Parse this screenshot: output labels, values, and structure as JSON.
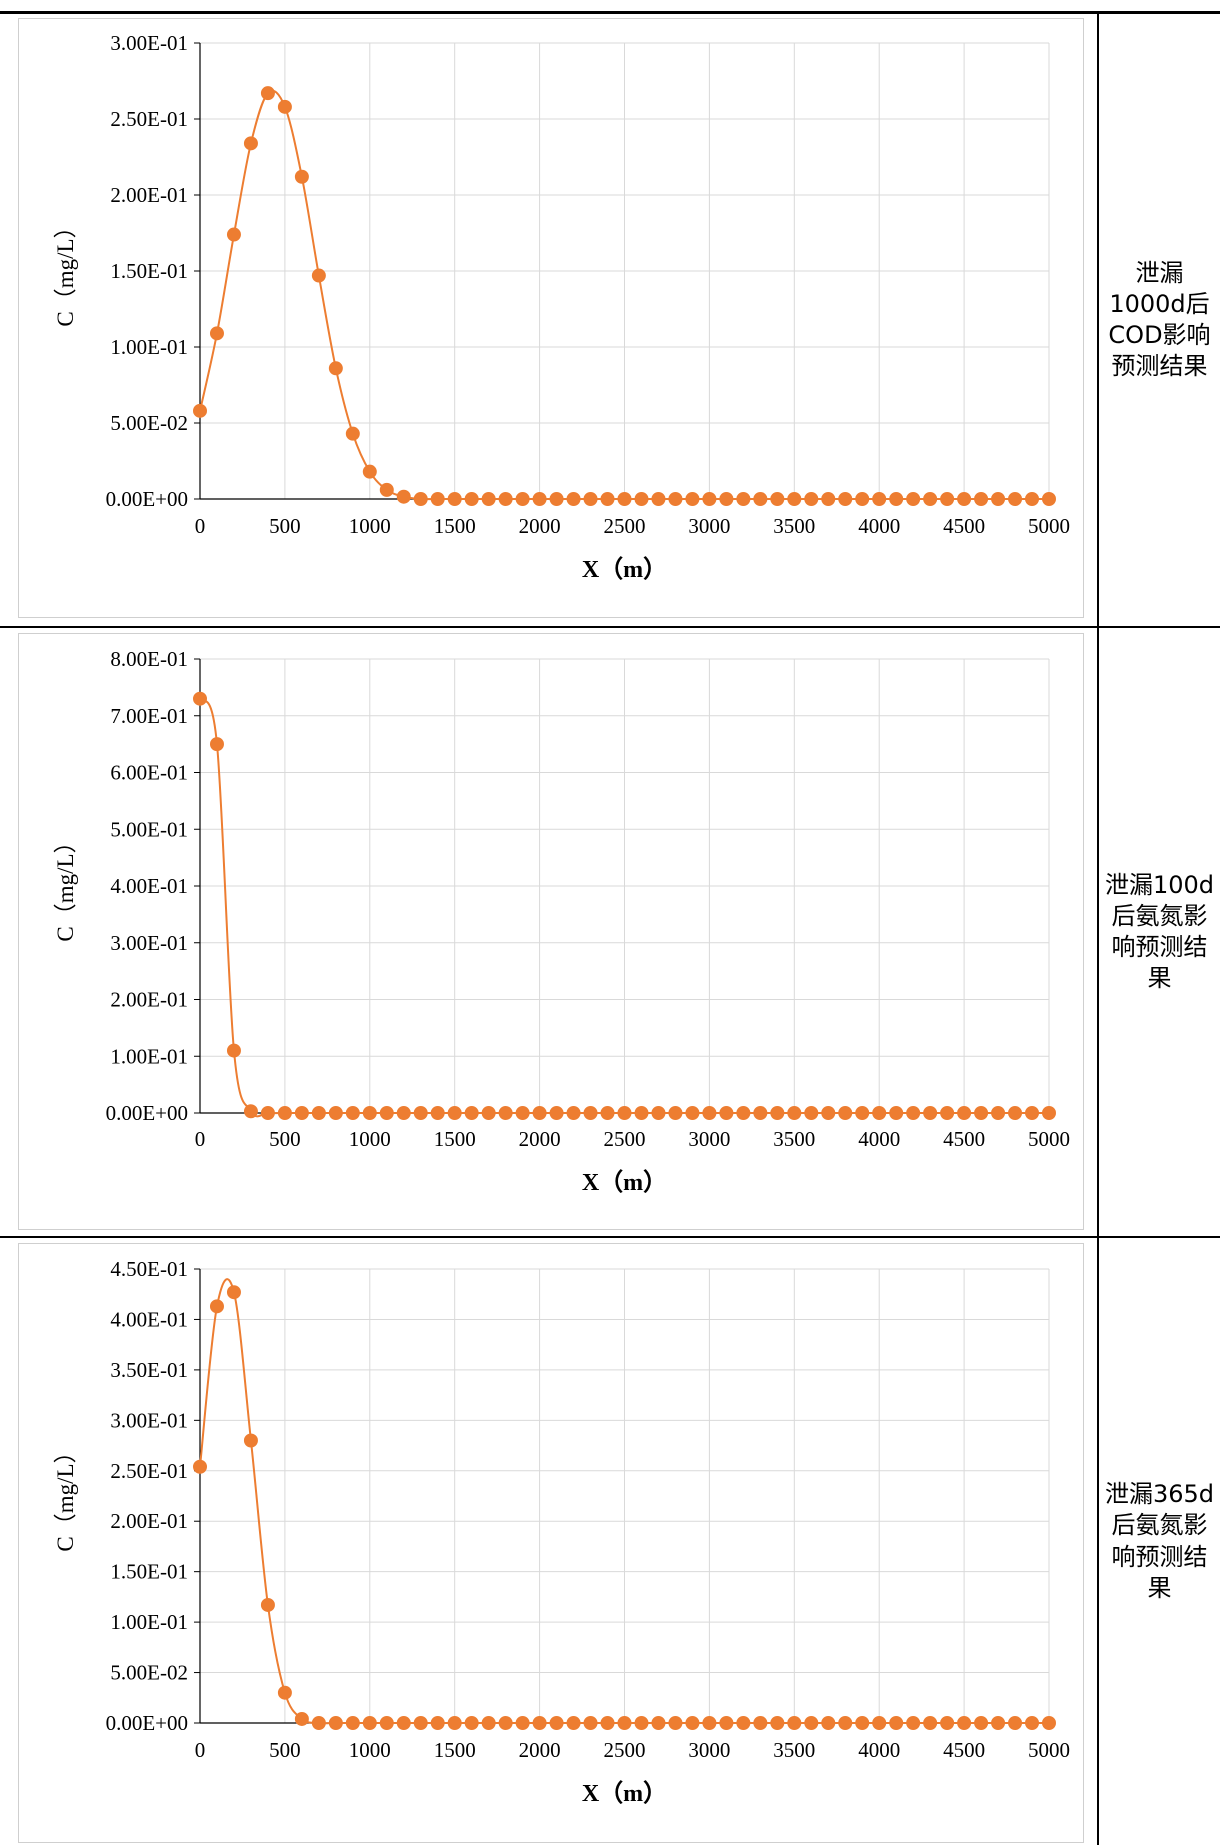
{
  "rows": [
    {
      "label": "泄漏\n1000d后\nCOD影响\n预测结果",
      "chart": {
        "type": "line",
        "ylabel": "C（mg/L）",
        "xlabel": "X（m）",
        "xlim": [
          0,
          5000
        ],
        "ylim": [
          0,
          0.3
        ],
        "xticks": [
          "0",
          "500",
          "1000",
          "1500",
          "2000",
          "2500",
          "3000",
          "3500",
          "4000",
          "4500",
          "5000"
        ],
        "yticks": [
          "0.00E+00",
          "5.00E-02",
          "1.00E-01",
          "1.50E-01",
          "2.00E-01",
          "2.50E-01",
          "3.00E-01"
        ],
        "series": [
          {
            "color": "#ED7D31",
            "x": [
              0,
              100,
              200,
              300,
              400,
              500,
              600,
              700,
              800,
              900,
              1000,
              1100,
              1200,
              1300,
              1400,
              1500,
              1600,
              1700,
              1800,
              1900,
              2000,
              2100,
              2200,
              2300,
              2400,
              2500,
              2600,
              2700,
              2800,
              2900,
              3000,
              3100,
              3200,
              3300,
              3400,
              3500,
              3600,
              3700,
              3800,
              3900,
              4000,
              4100,
              4200,
              4300,
              4400,
              4500,
              4600,
              4700,
              4800,
              4900,
              5000
            ],
            "y": [
              0.058,
              0.109,
              0.174,
              0.234,
              0.267,
              0.258,
              0.212,
              0.147,
              0.086,
              0.043,
              0.018,
              0.006,
              0.0015,
              0,
              0,
              0,
              0,
              0,
              0,
              0,
              0,
              0,
              0,
              0,
              0,
              0,
              0,
              0,
              0,
              0,
              0,
              0,
              0,
              0,
              0,
              0,
              0,
              0,
              0,
              0,
              0,
              0,
              0,
              0,
              0,
              0,
              0,
              0,
              0,
              0,
              0
            ]
          }
        ]
      }
    },
    {
      "label": "泄漏100d\n后氨氮影\n响预测结\n果",
      "chart": {
        "type": "line",
        "ylabel": "C（mg/L）",
        "xlabel": "X（m）",
        "xlim": [
          0,
          5000
        ],
        "ylim": [
          0,
          0.8
        ],
        "xticks": [
          "0",
          "500",
          "1000",
          "1500",
          "2000",
          "2500",
          "3000",
          "3500",
          "4000",
          "4500",
          "5000"
        ],
        "yticks": [
          "0.00E+00",
          "1.00E-01",
          "2.00E-01",
          "3.00E-01",
          "4.00E-01",
          "5.00E-01",
          "6.00E-01",
          "7.00E-01",
          "8.00E-01"
        ],
        "series": [
          {
            "color": "#ED7D31",
            "x": [
              0,
              100,
              200,
              300,
              400,
              500,
              600,
              700,
              800,
              900,
              1000,
              1100,
              1200,
              1300,
              1400,
              1500,
              1600,
              1700,
              1800,
              1900,
              2000,
              2100,
              2200,
              2300,
              2400,
              2500,
              2600,
              2700,
              2800,
              2900,
              3000,
              3100,
              3200,
              3300,
              3400,
              3500,
              3600,
              3700,
              3800,
              3900,
              4000,
              4100,
              4200,
              4300,
              4400,
              4500,
              4600,
              4700,
              4800,
              4900,
              5000
            ],
            "y": [
              0.73,
              0.65,
              0.11,
              0.003,
              0,
              0,
              0,
              0,
              0,
              0,
              0,
              0,
              0,
              0,
              0,
              0,
              0,
              0,
              0,
              0,
              0,
              0,
              0,
              0,
              0,
              0,
              0,
              0,
              0,
              0,
              0,
              0,
              0,
              0,
              0,
              0,
              0,
              0,
              0,
              0,
              0,
              0,
              0,
              0,
              0,
              0,
              0,
              0,
              0,
              0,
              0
            ]
          }
        ]
      }
    },
    {
      "label": "泄漏365d\n后氨氮影\n响预测结\n果",
      "chart": {
        "type": "line",
        "ylabel": "C（mg/L）",
        "xlabel": "X（m）",
        "xlim": [
          0,
          5000
        ],
        "ylim": [
          0,
          0.45
        ],
        "xticks": [
          "0",
          "500",
          "1000",
          "1500",
          "2000",
          "2500",
          "3000",
          "3500",
          "4000",
          "4500",
          "5000"
        ],
        "yticks": [
          "0.00E+00",
          "5.00E-02",
          "1.00E-01",
          "1.50E-01",
          "2.00E-01",
          "2.50E-01",
          "3.00E-01",
          "3.50E-01",
          "4.00E-01",
          "4.50E-01"
        ],
        "series": [
          {
            "color": "#ED7D31",
            "x": [
              0,
              100,
              200,
              300,
              400,
              500,
              600,
              700,
              800,
              900,
              1000,
              1100,
              1200,
              1300,
              1400,
              1500,
              1600,
              1700,
              1800,
              1900,
              2000,
              2100,
              2200,
              2300,
              2400,
              2500,
              2600,
              2700,
              2800,
              2900,
              3000,
              3100,
              3200,
              3300,
              3400,
              3500,
              3600,
              3700,
              3800,
              3900,
              4000,
              4100,
              4200,
              4300,
              4400,
              4500,
              4600,
              4700,
              4800,
              4900,
              5000
            ],
            "y": [
              0.254,
              0.413,
              0.427,
              0.28,
              0.117,
              0.03,
              0.004,
              0,
              0,
              0,
              0,
              0,
              0,
              0,
              0,
              0,
              0,
              0,
              0,
              0,
              0,
              0,
              0,
              0,
              0,
              0,
              0,
              0,
              0,
              0,
              0,
              0,
              0,
              0,
              0,
              0,
              0,
              0,
              0,
              0,
              0,
              0,
              0,
              0,
              0,
              0,
              0,
              0,
              0,
              0,
              0
            ]
          }
        ]
      }
    }
  ]
}
